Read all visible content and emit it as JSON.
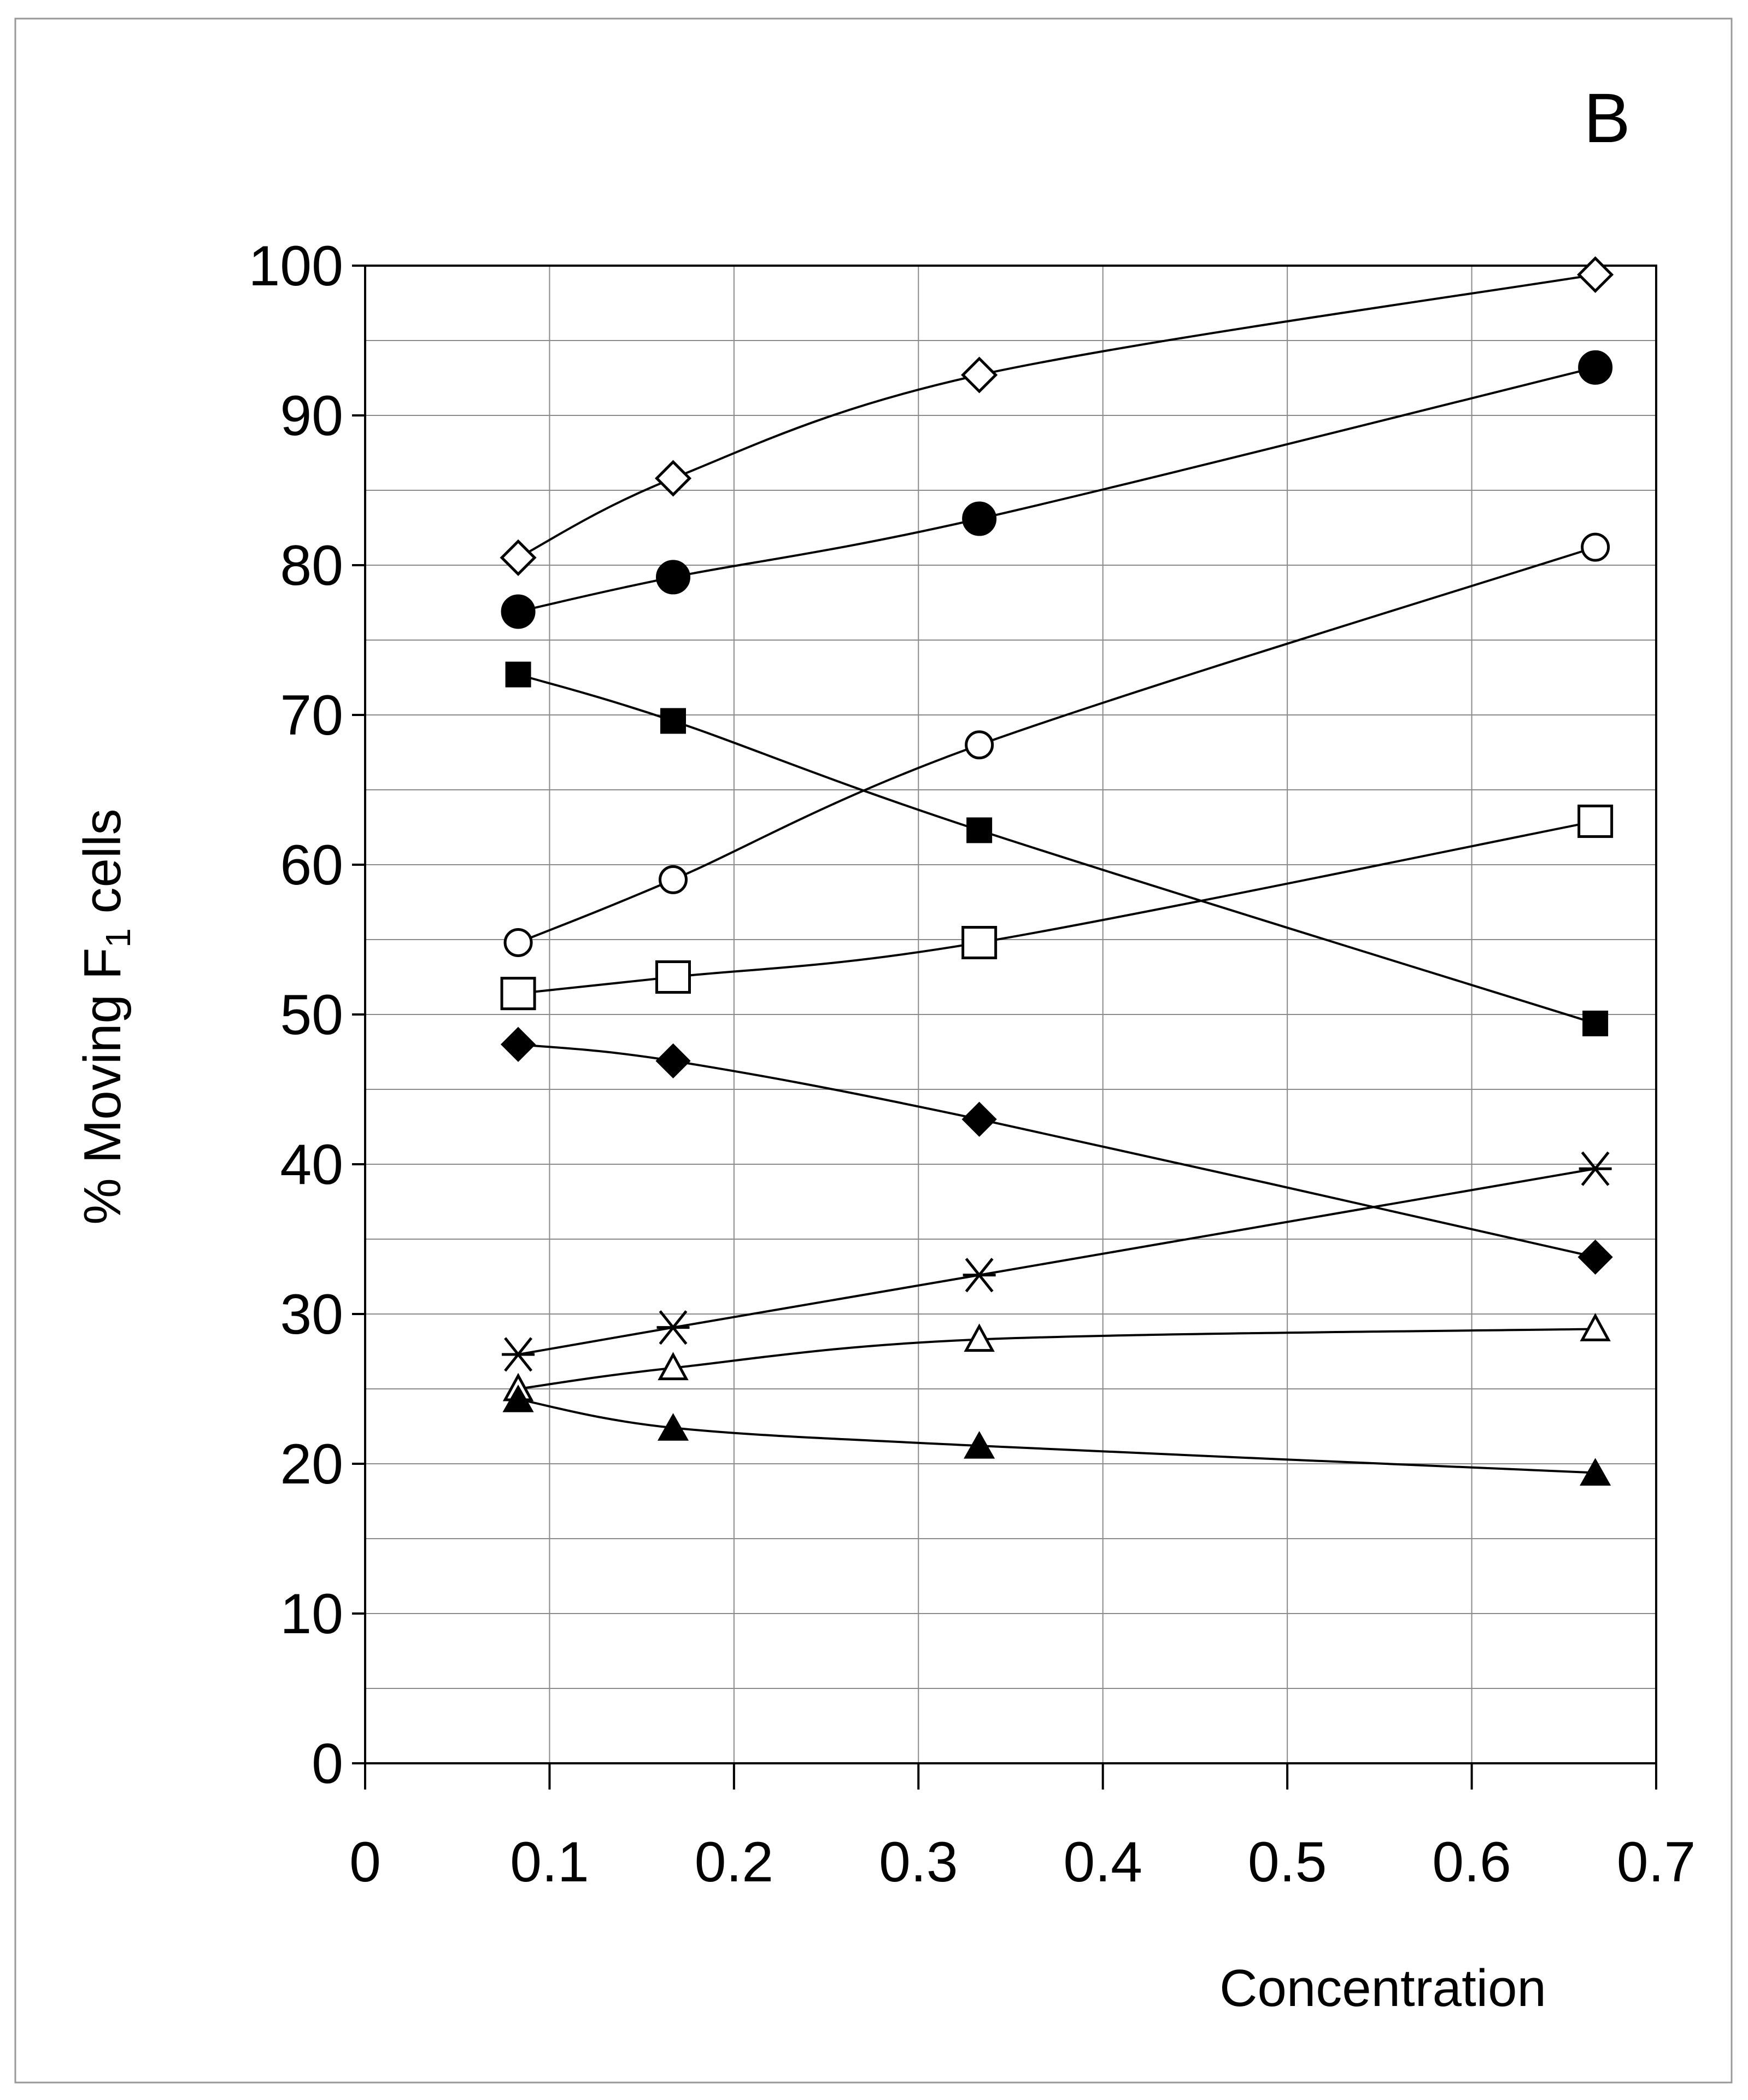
{
  "chart_data": {
    "type": "line",
    "panel_label": "B",
    "xlabel": "Concentration",
    "ylabel_main": "% Moving F",
    "ylabel_subscript": "1",
    "ylabel_tail": " cells",
    "xlim": [
      0,
      0.7
    ],
    "ylim": [
      0,
      100
    ],
    "x_ticks": [
      0,
      0.1,
      0.2,
      0.3,
      0.4,
      0.5,
      0.6,
      0.7
    ],
    "x_tick_labels": [
      "0",
      "0.1",
      "0.2",
      "0.3",
      "0.4",
      "0.5",
      "0.6",
      "0.7"
    ],
    "y_ticks": [
      0,
      10,
      20,
      30,
      40,
      50,
      60,
      70,
      80,
      90,
      100
    ],
    "y_tick_labels": [
      "0",
      "10",
      "20",
      "30",
      "40",
      "50",
      "60",
      "70",
      "80",
      "90",
      "100"
    ],
    "grid": true,
    "y_minor_grid_step": 5,
    "x": [
      0.083,
      0.167,
      0.333,
      0.667
    ],
    "series": [
      {
        "marker": "open-diamond",
        "values": [
          80.5,
          85.8,
          92.7,
          99.4
        ]
      },
      {
        "marker": "filled-circle",
        "values": [
          76.9,
          79.2,
          83.1,
          93.2
        ]
      },
      {
        "marker": "filled-square",
        "values": [
          72.7,
          69.6,
          62.3,
          49.4
        ]
      },
      {
        "marker": "open-circle",
        "values": [
          54.8,
          59.0,
          68.0,
          81.2
        ]
      },
      {
        "marker": "open-square",
        "values": [
          51.4,
          52.5,
          54.8,
          62.9
        ]
      },
      {
        "marker": "filled-diamond",
        "values": [
          48.0,
          46.9,
          43.0,
          33.8
        ]
      },
      {
        "marker": "asterisk",
        "values": [
          27.3,
          29.1,
          32.6,
          39.7
        ]
      },
      {
        "marker": "open-triangle",
        "values": [
          25.0,
          26.4,
          28.3,
          29.0
        ]
      },
      {
        "marker": "filled-triangle",
        "values": [
          24.3,
          22.4,
          21.2,
          19.4
        ]
      }
    ]
  }
}
